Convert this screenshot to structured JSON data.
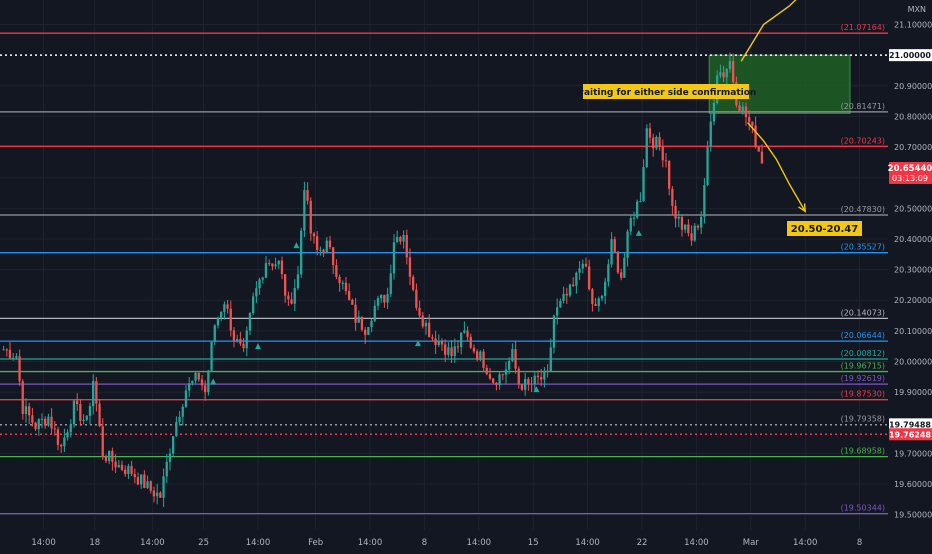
{
  "symbol_label": "MXN",
  "current_price": {
    "value": 20.6544,
    "price_label": "20.65440",
    "countdown_label": "03:13:09",
    "color": "#f23645"
  },
  "annotations": {
    "waiting_text": "waiting for either side confirmation",
    "target_text": "20.50-20.47"
  },
  "colors": {
    "background": "#131722",
    "grid": "#1f2330",
    "up_candle": "#26a69a",
    "down_candle": "#ef5350",
    "zone_fill": "#1f5f24",
    "arrow": "#f2c812"
  },
  "chart_data": {
    "type": "candlestick",
    "ylim": [
      19.45,
      21.18
    ],
    "y_ticks": [
      {
        "value": 21.1,
        "label": "21.10000"
      },
      {
        "value": 20.9,
        "label": "20.90000"
      },
      {
        "value": 20.8,
        "label": "20.80000"
      },
      {
        "value": 20.7,
        "label": "20.70000"
      },
      {
        "value": 20.6,
        "label": "20.60000"
      },
      {
        "value": 20.5,
        "label": "20.50000"
      },
      {
        "value": 20.4,
        "label": "20.40000"
      },
      {
        "value": 20.3,
        "label": "20.30000"
      },
      {
        "value": 20.2,
        "label": "20.20000"
      },
      {
        "value": 20.1,
        "label": "20.10000"
      },
      {
        "value": 20.0,
        "label": "20.00000"
      },
      {
        "value": 19.9,
        "label": "19.90000"
      },
      {
        "value": 19.7,
        "label": "19.70000"
      },
      {
        "value": 19.6,
        "label": "19.60000"
      },
      {
        "value": 19.5,
        "label": "19.50000"
      }
    ],
    "x_ticks": [
      {
        "index": 13,
        "label": "14:00"
      },
      {
        "index": 29,
        "label": "18"
      },
      {
        "index": 47,
        "label": "14:00"
      },
      {
        "index": 63,
        "label": "25"
      },
      {
        "index": 80,
        "label": "14:00"
      },
      {
        "index": 98,
        "label": "Feb"
      },
      {
        "index": 115,
        "label": "14:00"
      },
      {
        "index": 132,
        "label": "8"
      },
      {
        "index": 149,
        "label": "14:00"
      },
      {
        "index": 166,
        "label": "15"
      },
      {
        "index": 183,
        "label": "14:00"
      },
      {
        "index": 200,
        "label": "22"
      },
      {
        "index": 217,
        "label": "14:00"
      },
      {
        "index": 234,
        "label": "Mar"
      },
      {
        "index": 251,
        "label": "14:00"
      },
      {
        "index": 268,
        "label": "8"
      },
      {
        "index": 285,
        "label": "14:00"
      }
    ],
    "h_levels": [
      {
        "value": 21.07164,
        "label": "21.07164",
        "color": "#f23645",
        "style": "solid",
        "tag": "text"
      },
      {
        "value": 21.0,
        "label": "21.00000",
        "color": "#ffffff",
        "style": "dotted",
        "tag": "box"
      },
      {
        "value": 20.81471,
        "label": "20.81471",
        "color": "#9598a1",
        "style": "solid",
        "tag": "text"
      },
      {
        "value": 20.70243,
        "label": "20.70243",
        "color": "#f23645",
        "style": "solid",
        "tag": "text"
      },
      {
        "value": 20.4783,
        "label": "20.47830",
        "color": "#9598a1",
        "style": "solid",
        "tag": "text"
      },
      {
        "value": 20.35527,
        "label": "20.35527",
        "color": "#2196f3",
        "style": "solid",
        "tag": "text"
      },
      {
        "value": 20.14073,
        "label": "20.14073",
        "color": "#b2b5be",
        "style": "solid",
        "tag": "text"
      },
      {
        "value": 20.06644,
        "label": "20.06644",
        "color": "#2196f3",
        "style": "solid",
        "tag": "text"
      },
      {
        "value": 20.00812,
        "label": "20.00812",
        "color": "#26a69a",
        "style": "solid",
        "tag": "text"
      },
      {
        "value": 19.96715,
        "label": "19.96715",
        "color": "#4caf50",
        "style": "solid",
        "tag": "text"
      },
      {
        "value": 19.92619,
        "label": "19.92619",
        "color": "#7e57c2",
        "style": "solid",
        "tag": "text"
      },
      {
        "value": 19.8753,
        "label": "19.87530",
        "color": "#f23645",
        "style": "solid",
        "tag": "text"
      },
      {
        "value": 19.79358,
        "label": "19.79358",
        "color": "#9598a1",
        "style": "dotted",
        "tag": "text"
      },
      {
        "value": 19.79488,
        "label": "19.79488",
        "color": "#d1d4dc",
        "style": "none",
        "tag": "box"
      },
      {
        "value": 19.76248,
        "label": "19.76248",
        "color": "#f23645",
        "style": "dotted",
        "tag": "box"
      },
      {
        "value": 19.68958,
        "label": "19.68958",
        "color": "#4caf50",
        "style": "solid",
        "tag": "text"
      },
      {
        "value": 19.50344,
        "label": "19.50344",
        "color": "#7e57c2",
        "style": "solid",
        "tag": "text"
      }
    ],
    "zone": {
      "index_start": 221,
      "index_end": 265,
      "y_top": 21.0,
      "y_bottom": 20.81
    },
    "keypoints": [
      [
        0,
        20.04
      ],
      [
        4,
        20.02
      ],
      [
        6,
        19.85
      ],
      [
        10,
        19.79
      ],
      [
        14,
        19.82
      ],
      [
        18,
        19.72
      ],
      [
        22,
        19.85
      ],
      [
        26,
        19.8
      ],
      [
        28,
        19.94
      ],
      [
        31,
        19.7
      ],
      [
        36,
        19.66
      ],
      [
        40,
        19.64
      ],
      [
        46,
        19.58
      ],
      [
        49,
        19.56
      ],
      [
        53,
        19.77
      ],
      [
        57,
        19.91
      ],
      [
        61,
        19.95
      ],
      [
        63,
        19.9
      ],
      [
        66,
        20.12
      ],
      [
        69,
        20.2
      ],
      [
        72,
        20.08
      ],
      [
        75,
        20.02
      ],
      [
        78,
        20.2
      ],
      [
        82,
        20.33
      ],
      [
        86,
        20.32
      ],
      [
        89,
        20.18
      ],
      [
        92,
        20.28
      ],
      [
        94,
        20.58
      ],
      [
        96,
        20.42
      ],
      [
        98,
        20.36
      ],
      [
        101,
        20.38
      ],
      [
        104,
        20.3
      ],
      [
        107,
        20.22
      ],
      [
        110,
        20.14
      ],
      [
        113,
        20.11
      ],
      [
        116,
        20.18
      ],
      [
        120,
        20.22
      ],
      [
        122,
        20.4
      ],
      [
        125,
        20.42
      ],
      [
        128,
        20.22
      ],
      [
        131,
        20.14
      ],
      [
        134,
        20.08
      ],
      [
        137,
        20.06
      ],
      [
        140,
        20.02
      ],
      [
        144,
        20.09
      ],
      [
        147,
        20.04
      ],
      [
        150,
        20.0
      ],
      [
        153,
        19.94
      ],
      [
        156,
        19.96
      ],
      [
        159,
        20.02
      ],
      [
        161,
        19.93
      ],
      [
        164,
        19.92
      ],
      [
        167,
        19.94
      ],
      [
        170,
        19.95
      ],
      [
        172,
        20.15
      ],
      [
        175,
        20.2
      ],
      [
        178,
        20.24
      ],
      [
        181,
        20.34
      ],
      [
        184,
        20.18
      ],
      [
        187,
        20.2
      ],
      [
        190,
        20.38
      ],
      [
        193,
        20.28
      ],
      [
        196,
        20.46
      ],
      [
        199,
        20.54
      ],
      [
        201,
        20.76
      ],
      [
        203,
        20.72
      ],
      [
        205,
        20.7
      ],
      [
        207,
        20.66
      ],
      [
        209,
        20.5
      ],
      [
        212,
        20.44
      ],
      [
        215,
        20.4
      ],
      [
        218,
        20.48
      ],
      [
        221,
        20.78
      ],
      [
        223,
        20.95
      ],
      [
        225,
        20.94
      ],
      [
        227,
        20.98
      ],
      [
        229,
        20.86
      ],
      [
        231,
        20.82
      ],
      [
        233,
        20.78
      ],
      [
        235,
        20.72
      ],
      [
        237,
        20.66
      ]
    ],
    "prediction_path_up": [
      [
        231,
        20.98
      ],
      [
        238,
        21.1
      ],
      [
        246,
        21.16
      ],
      [
        252,
        21.22
      ]
    ],
    "prediction_path_down": [
      [
        233,
        20.78
      ],
      [
        238,
        20.72
      ],
      [
        242,
        20.66
      ],
      [
        246,
        20.58
      ],
      [
        251,
        20.49
      ]
    ],
    "triangle_markers": [
      [
        66,
        19.935
      ],
      [
        80,
        20.05
      ],
      [
        92,
        20.38
      ],
      [
        130,
        20.06
      ],
      [
        167,
        19.91
      ],
      [
        199,
        20.42
      ]
    ]
  }
}
